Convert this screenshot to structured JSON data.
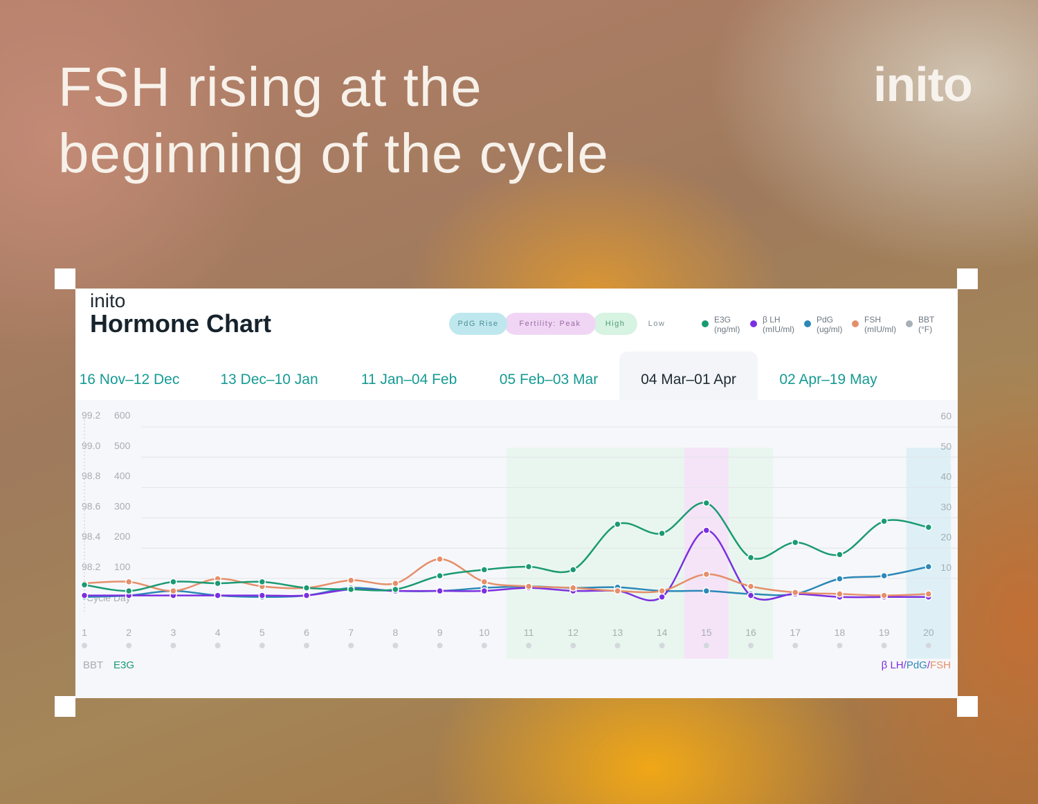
{
  "headline": "FSH rising at the beginning of the cycle",
  "brand": "inito",
  "card": {
    "brand": "inito",
    "title": "Hormone Chart",
    "pills": [
      {
        "label": "PdG Rise",
        "color": "#bfe8ee",
        "text": "#4f8d98"
      },
      {
        "label": "Fertility: Peak",
        "color": "#f0d6f4",
        "text": "#9a6aa3"
      },
      {
        "label": "High",
        "color": "#d7f3e2",
        "text": "#4e9a75"
      },
      {
        "label": "Low",
        "color": "#ffffff",
        "text": "#7e8a91"
      }
    ],
    "legend": [
      {
        "name": "E3G",
        "unit": "(ng/ml)",
        "color": "#1a9a72"
      },
      {
        "name": "β LH",
        "unit": "(mIU/ml)",
        "color": "#7b2fe0"
      },
      {
        "name": "PdG",
        "unit": "(ug/ml)",
        "color": "#2c88b8"
      },
      {
        "name": "FSH",
        "unit": "(mIU/ml)",
        "color": "#e58f6a"
      },
      {
        "name": "BBT",
        "unit": "(°F)",
        "color": "#a9b0b5"
      }
    ],
    "tabs": [
      {
        "label": "16 Nov–12 Dec",
        "active": false
      },
      {
        "label": "13 Dec–10 Jan",
        "active": false
      },
      {
        "label": "11 Jan–04 Feb",
        "active": false
      },
      {
        "label": "05 Feb–03 Mar",
        "active": false
      },
      {
        "label": "04 Mar–01 Apr",
        "active": true
      },
      {
        "label": "02 Apr–19 May",
        "active": false
      }
    ]
  },
  "chart_data": {
    "type": "line",
    "x": [
      1,
      2,
      3,
      4,
      5,
      6,
      7,
      8,
      9,
      10,
      11,
      12,
      13,
      14,
      15,
      16,
      17,
      18,
      19,
      20
    ],
    "left_axis_bbt_ticks": [
      "99.2",
      "99.0",
      "98.8",
      "98.6",
      "98.4",
      "98.2"
    ],
    "left_axis_e3g_ticks": [
      "600",
      "500",
      "400",
      "300",
      "200",
      "100"
    ],
    "right_axis_ticks": [
      "60",
      "50",
      "40",
      "30",
      "20",
      "10"
    ],
    "left_axis_label": "BBT",
    "left_axis_label_2": "E3G",
    "right_axis_label_parts": [
      {
        "text": "β LH",
        "color": "#7b2fe0"
      },
      {
        "text": "/",
        "color": "#7b2fe0"
      },
      {
        "text": "PdG",
        "color": "#2c88b8"
      },
      {
        "text": "/",
        "color": "#7b2fe0"
      },
      {
        "text": "FSH",
        "color": "#e58f6a"
      }
    ],
    "e3g_ylim": [
      0,
      600
    ],
    "right_ylim": [
      0,
      60
    ],
    "cycle_marker_label": "Cycle Day",
    "phase_bands": [
      {
        "phase": "High",
        "from_day": 11,
        "to_day": 14,
        "color": "#e6f6ec"
      },
      {
        "phase": "Peak",
        "from_day": 15,
        "to_day": 15,
        "color": "#f4e0f6"
      },
      {
        "phase": "High",
        "from_day": 16,
        "to_day": 16,
        "color": "#e6f6ec"
      },
      {
        "phase": "PdG Rise",
        "from_day": 20,
        "to_day": 20,
        "color": "#d9eef4"
      }
    ],
    "series": [
      {
        "name": "E3G",
        "axis": "left",
        "color": "#1a9a72",
        "values": [
          40,
          20,
          50,
          45,
          50,
          30,
          25,
          25,
          70,
          90,
          100,
          90,
          240,
          210,
          310,
          130,
          180,
          140,
          250,
          230
        ]
      },
      {
        "name": "β LH",
        "axis": "right",
        "color": "#7b2fe0",
        "values": [
          0.5,
          0.5,
          0.5,
          0.5,
          0.5,
          0.5,
          2.5,
          2,
          2,
          2,
          3,
          2,
          2,
          0,
          22,
          0.5,
          1,
          0,
          0,
          0
        ]
      },
      {
        "name": "PdG",
        "axis": "right",
        "color": "#2c88b8",
        "values": [
          0,
          0.5,
          2,
          0.5,
          0,
          0.5,
          3,
          2,
          2,
          3,
          3.5,
          3,
          3.2,
          2,
          2,
          1,
          1,
          6,
          7,
          10
        ]
      },
      {
        "name": "FSH",
        "axis": "right",
        "color": "#e58f6a",
        "values": [
          4.5,
          5,
          2,
          6,
          3.5,
          3,
          5.5,
          4.5,
          12.5,
          5,
          3.5,
          3,
          2,
          2,
          7.5,
          3.5,
          1.5,
          1,
          0.5,
          1
        ]
      }
    ]
  }
}
